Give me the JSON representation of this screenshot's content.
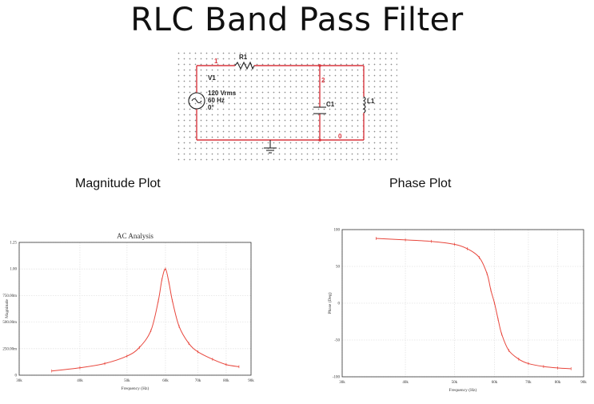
{
  "title": "RLC Band Pass Filter",
  "circuit": {
    "nodes": [
      "1",
      "2",
      "0"
    ],
    "resistor": "R1",
    "capacitor": "C1",
    "inductor": "L1",
    "source": {
      "name": "V1",
      "voltage": "120 Vrms",
      "frequency": "60 Hz",
      "phase": "0°"
    }
  },
  "labels": {
    "magnitude": "Magnitude Plot",
    "phase": "Phase Plot"
  },
  "chart_data": [
    {
      "type": "line",
      "title": "AC Analysis",
      "xlabel": "Frequency (Hz)",
      "ylabel": "Magnitude",
      "xscale": "log",
      "xticks": [
        "30k",
        "40k",
        "50k",
        "60k",
        "70k",
        "80k",
        "90k"
      ],
      "yticks": [
        "1.25",
        "1.00",
        "750.00m",
        "500.00m",
        "250.00m",
        "0"
      ],
      "ylim": [
        0,
        1.25
      ],
      "color": "#e8463c",
      "series": [
        {
          "x": [
            35000,
            40000,
            45000,
            50000,
            53000,
            56000,
            58000,
            59000,
            60000,
            61000,
            62000,
            64000,
            67000,
            70000,
            75000,
            80000,
            85000
          ],
          "y": [
            0.04,
            0.07,
            0.11,
            0.18,
            0.26,
            0.42,
            0.7,
            0.9,
            1.0,
            0.87,
            0.7,
            0.46,
            0.3,
            0.22,
            0.15,
            0.1,
            0.08
          ]
        }
      ]
    },
    {
      "type": "line",
      "title": "",
      "xlabel": "Frequency (Hz)",
      "ylabel": "Phase (Deg)",
      "xscale": "log",
      "xticks": [
        "30k",
        "40k",
        "50k",
        "60k",
        "70k",
        "80k",
        "90k"
      ],
      "yticks": [
        "100",
        "50",
        "0",
        "-50",
        "-100"
      ],
      "ylim": [
        -100,
        100
      ],
      "color": "#e8463c",
      "series": [
        {
          "x": [
            35000,
            40000,
            45000,
            50000,
            53000,
            56000,
            58000,
            59000,
            60000,
            61000,
            62000,
            64000,
            67000,
            70000,
            75000,
            80000,
            85000
          ],
          "y": [
            88,
            86,
            84,
            80,
            74,
            62,
            40,
            18,
            0,
            -22,
            -42,
            -64,
            -76,
            -82,
            -86,
            -88,
            -89
          ]
        }
      ]
    }
  ]
}
